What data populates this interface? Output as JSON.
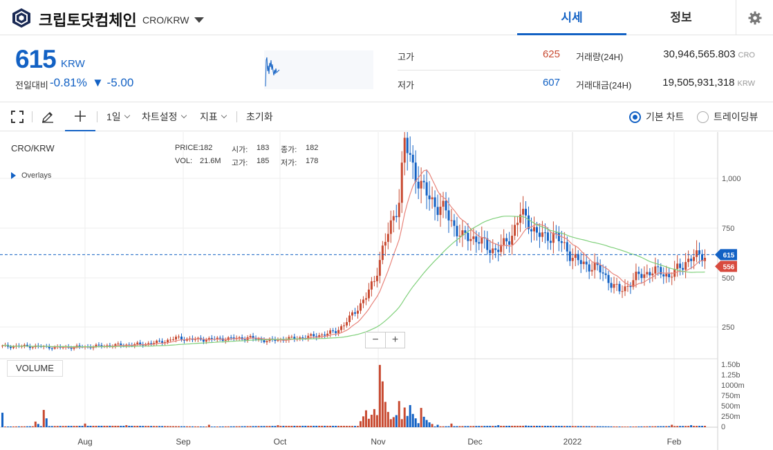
{
  "header": {
    "coin_name": "크립토닷컴체인",
    "pair": "CRO/KRW",
    "tab_market": "시세",
    "tab_info": "정보"
  },
  "price_panel": {
    "price": "615",
    "unit": "KRW",
    "change_label": "전일대비",
    "change_pct": "-0.81%",
    "change_val": "▼ -5.00",
    "high_label": "고가",
    "high": "625",
    "low_label": "저가",
    "low": "607",
    "volume_label": "거래량(24H)",
    "volume": "30,946,565.803",
    "volume_unit": "CRO",
    "amount_label": "거래대금(24H)",
    "amount": "19,505,931,318",
    "amount_unit": "KRW",
    "colors": {
      "up": "#c84a31",
      "down": "#1261c4"
    }
  },
  "toolbar": {
    "interval": "1일",
    "chart_settings": "차트설정",
    "indicators": "지표",
    "reset": "초기화",
    "basic_chart": "기본 차트",
    "tradingview": "트레이딩뷰"
  },
  "chart": {
    "title": "CRO/KRW",
    "overlays_label": "Overlays",
    "ohlc": {
      "price_label": "PRICE:",
      "price": "182",
      "open_label": "시가:",
      "open": "183",
      "close_label": "종가:",
      "close": "182",
      "vol_label": "VOL:",
      "vol": "21.6M",
      "high_label": "고가:",
      "high": "185",
      "low_label": "저가:",
      "low": "178"
    },
    "volume_label": "VOLUME",
    "zoom_out": "−",
    "zoom_in": "+",
    "last_price_tag": "615",
    "ma_tag": "556"
  },
  "chart_data": {
    "type": "candlestick",
    "x_labels": [
      "Aug",
      "Sep",
      "Oct",
      "Nov",
      "Dec",
      "2022",
      "Feb"
    ],
    "y_ticks": [
      "1,000",
      "750",
      "500",
      "250"
    ],
    "volume_ticks": [
      "1.50b",
      "1.25b",
      "1000m",
      "750m",
      "500m",
      "250m",
      "0"
    ],
    "anchors": [
      [
        0,
        152
      ],
      [
        10,
        153
      ],
      [
        20,
        146
      ],
      [
        30,
        150
      ],
      [
        40,
        157
      ],
      [
        50,
        162
      ],
      [
        58,
        175
      ],
      [
        63,
        194
      ],
      [
        70,
        186
      ],
      [
        80,
        190
      ],
      [
        90,
        195
      ],
      [
        96,
        180
      ],
      [
        101,
        187
      ],
      [
        110,
        198
      ],
      [
        118,
        215
      ],
      [
        121,
        230
      ],
      [
        124,
        260
      ],
      [
        128,
        330
      ],
      [
        132,
        400
      ],
      [
        135,
        490
      ],
      [
        138,
        640
      ],
      [
        141,
        760
      ],
      [
        144,
        900
      ],
      [
        146,
        1180
      ],
      [
        149,
        1060
      ],
      [
        152,
        960
      ],
      [
        155,
        900
      ],
      [
        158,
        860
      ],
      [
        161,
        830
      ],
      [
        164,
        760
      ],
      [
        167,
        700
      ],
      [
        170,
        705
      ],
      [
        173,
        690
      ],
      [
        176,
        650
      ],
      [
        179,
        640
      ],
      [
        182,
        660
      ],
      [
        185,
        720
      ],
      [
        188,
        820
      ],
      [
        191,
        780
      ],
      [
        194,
        720
      ],
      [
        197,
        700
      ],
      [
        200,
        720
      ],
      [
        203,
        670
      ],
      [
        206,
        620
      ],
      [
        209,
        580
      ],
      [
        212,
        560
      ],
      [
        215,
        555
      ],
      [
        218,
        520
      ],
      [
        221,
        470
      ],
      [
        224,
        430
      ],
      [
        227,
        460
      ],
      [
        230,
        500
      ],
      [
        233,
        520
      ],
      [
        236,
        530
      ],
      [
        239,
        530
      ],
      [
        242,
        505
      ],
      [
        245,
        540
      ],
      [
        248,
        580
      ],
      [
        251,
        600
      ],
      [
        254,
        615
      ]
    ],
    "volume_events": [
      [
        0,
        0.36
      ],
      [
        12,
        0.14
      ],
      [
        13,
        0.08
      ],
      [
        15,
        0.43
      ],
      [
        16,
        0.22
      ],
      [
        30,
        0.09
      ],
      [
        45,
        0.05
      ],
      [
        75,
        0.06
      ],
      [
        100,
        0.05
      ],
      [
        130,
        0.15
      ],
      [
        131,
        0.27
      ],
      [
        132,
        0.42
      ],
      [
        133,
        0.21
      ],
      [
        134,
        0.31
      ],
      [
        135,
        0.45
      ],
      [
        136,
        0.3
      ],
      [
        137,
        1.55
      ],
      [
        138,
        1.14
      ],
      [
        139,
        0.63
      ],
      [
        140,
        0.38
      ],
      [
        141,
        0.2
      ],
      [
        142,
        0.25
      ],
      [
        143,
        0.3
      ],
      [
        144,
        0.65
      ],
      [
        145,
        0.2
      ],
      [
        146,
        0.49
      ],
      [
        147,
        0.28
      ],
      [
        148,
        0.55
      ],
      [
        149,
        0.33
      ],
      [
        150,
        0.22
      ],
      [
        151,
        0.1
      ],
      [
        152,
        0.48
      ],
      [
        153,
        0.26
      ],
      [
        154,
        0.18
      ],
      [
        155,
        0.12
      ],
      [
        156,
        0.08
      ],
      [
        158,
        0.06
      ],
      [
        163,
        0.09
      ],
      [
        180,
        0.05
      ],
      [
        190,
        0.04
      ],
      [
        243,
        0.06
      ],
      [
        250,
        0.05
      ]
    ],
    "y_range": [
      130,
      1200
    ],
    "ma_short_last": 556,
    "last_price": 615
  }
}
